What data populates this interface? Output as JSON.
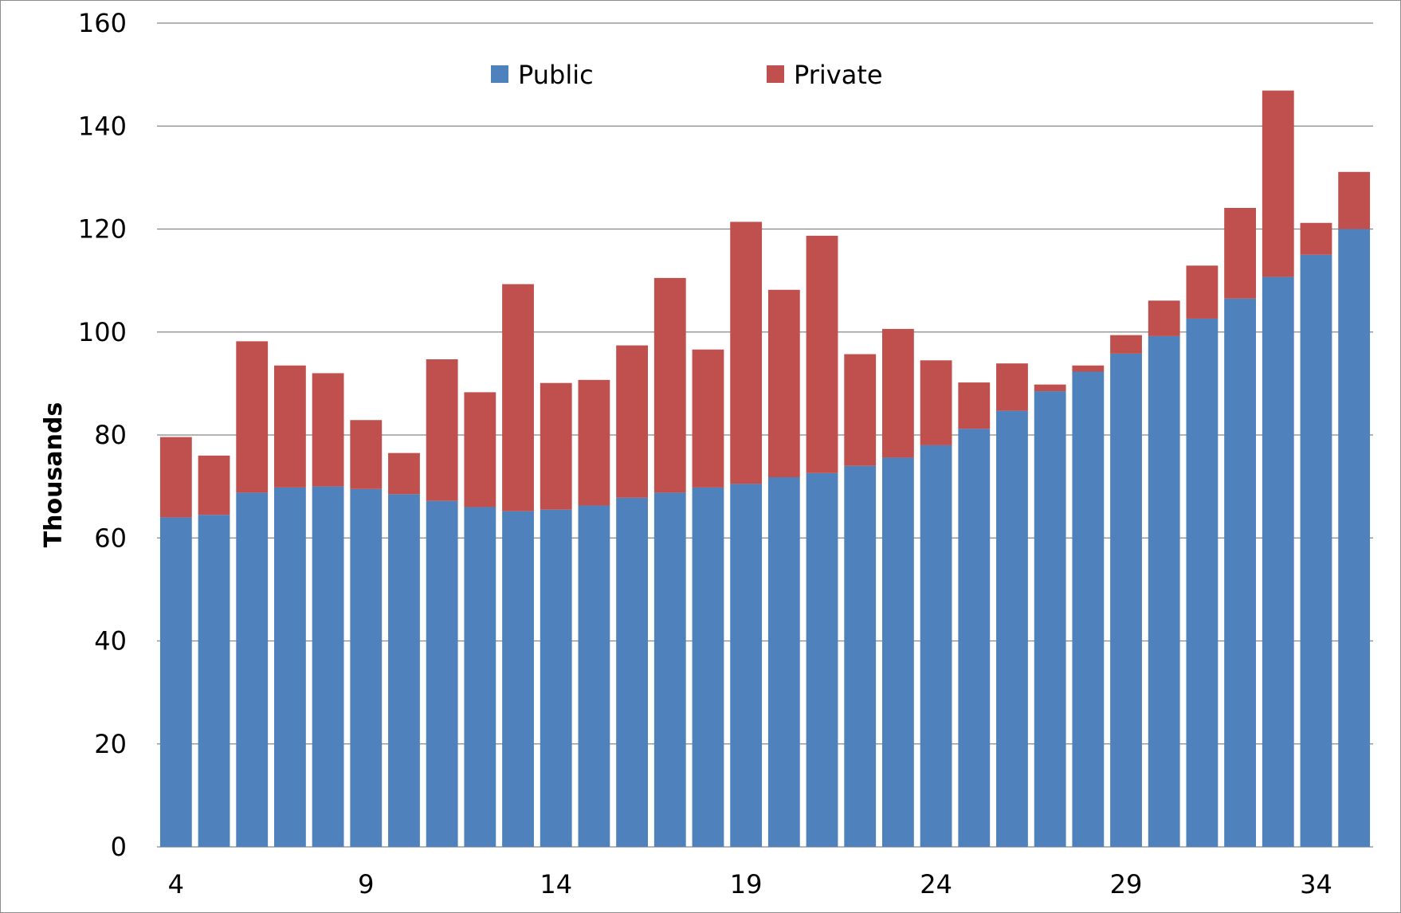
{
  "chart_data": {
    "type": "bar",
    "stacked": true,
    "title": "",
    "xlabel": "",
    "ylabel": "Thousands",
    "ylim": [
      0,
      160
    ],
    "y_ticks": [
      0,
      20,
      40,
      60,
      80,
      100,
      120,
      140,
      160
    ],
    "x_tick_labels": [
      "4",
      "9",
      "14",
      "19",
      "24",
      "29",
      "34"
    ],
    "x": [
      4,
      5,
      6,
      7,
      8,
      9,
      10,
      11,
      12,
      13,
      14,
      15,
      16,
      17,
      18,
      19,
      20,
      21,
      22,
      23,
      24,
      25,
      26,
      27,
      28,
      29,
      30,
      31,
      32,
      33,
      34,
      35
    ],
    "grid": true,
    "legend_position": "top-center",
    "series": [
      {
        "name": "Public",
        "color": "#4f81bd",
        "values": [
          64,
          64.5,
          68.8,
          69.8,
          70,
          69.5,
          68.5,
          67.2,
          66,
          65.2,
          65.5,
          66.3,
          67.8,
          68.8,
          69.8,
          70.5,
          71.8,
          72.6,
          74,
          75.6,
          78,
          81.2,
          84.7,
          88.5,
          92.3,
          95.8,
          99.2,
          102.6,
          106.5,
          110.7,
          115,
          120
        ]
      },
      {
        "name": "Private",
        "color": "#c0504d",
        "values": [
          15.6,
          11.5,
          29.4,
          23.7,
          22,
          13.4,
          8,
          27.5,
          22.3,
          44.1,
          24.6,
          24.4,
          29.6,
          41.7,
          26.8,
          50.9,
          36.4,
          46.1,
          21.7,
          25,
          16.5,
          9,
          9.2,
          1.3,
          1.2,
          3.6,
          6.9,
          10.3,
          17.6,
          36.2,
          6.2,
          11.1
        ]
      }
    ]
  }
}
